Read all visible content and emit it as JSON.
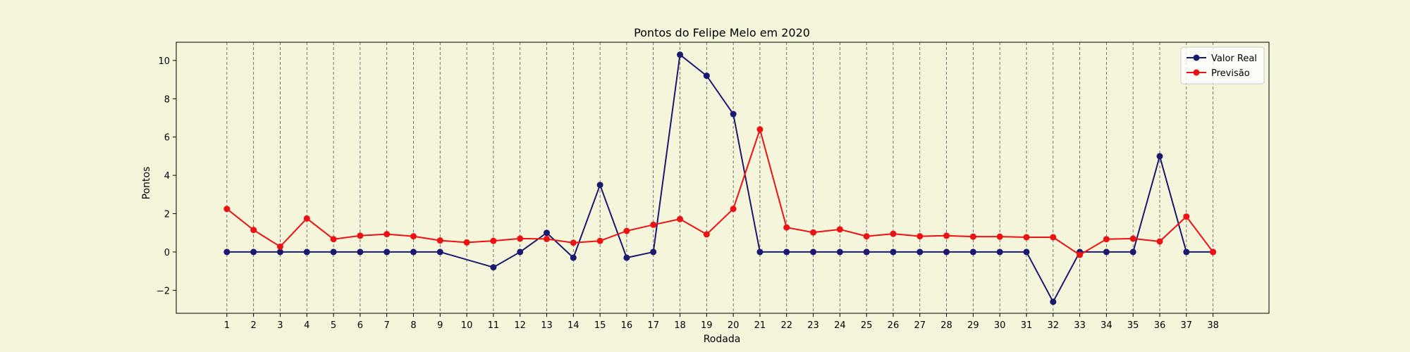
{
  "chart_data": {
    "type": "line",
    "title": "Pontos do Felipe Melo em 2020",
    "xlabel": "Rodada",
    "ylabel": "Pontos",
    "xlim": [
      -0.9,
      40.1
    ],
    "ylim": [
      -3.2,
      10.95
    ],
    "yticks": [
      -2,
      0,
      2,
      4,
      6,
      8,
      10
    ],
    "x": [
      1,
      2,
      3,
      4,
      5,
      6,
      7,
      8,
      9,
      10,
      11,
      12,
      13,
      14,
      15,
      16,
      17,
      18,
      19,
      20,
      21,
      22,
      23,
      24,
      25,
      26,
      27,
      28,
      29,
      30,
      31,
      32,
      33,
      34,
      35,
      36,
      37,
      38
    ],
    "vertical_grid": true,
    "legend_position": "upper right",
    "series": [
      {
        "name": "Valor Real",
        "color": "#191970",
        "points": [
          [
            1,
            0
          ],
          [
            2,
            0
          ],
          [
            3,
            0
          ],
          [
            4,
            0
          ],
          [
            5,
            0
          ],
          [
            6,
            0
          ],
          [
            7,
            0
          ],
          [
            8,
            0
          ],
          [
            9,
            0
          ],
          [
            11,
            -0.8
          ],
          [
            12,
            0
          ],
          [
            13,
            1.0
          ],
          [
            14,
            -0.3
          ],
          [
            15,
            3.5
          ],
          [
            16,
            -0.3
          ],
          [
            17,
            0
          ],
          [
            18,
            10.3
          ],
          [
            19,
            9.2
          ],
          [
            20,
            7.2
          ],
          [
            21,
            0
          ],
          [
            22,
            0
          ],
          [
            23,
            0
          ],
          [
            24,
            0
          ],
          [
            25,
            0
          ],
          [
            26,
            0
          ],
          [
            27,
            0
          ],
          [
            28,
            0
          ],
          [
            29,
            0
          ],
          [
            30,
            0
          ],
          [
            31,
            0
          ],
          [
            32,
            -2.6
          ],
          [
            33,
            0
          ],
          [
            34,
            0
          ],
          [
            35,
            0
          ],
          [
            36,
            5.0
          ],
          [
            37,
            0
          ],
          [
            38,
            0
          ]
        ]
      },
      {
        "name": "Previsão",
        "color": "#ee1111",
        "points": [
          [
            1,
            2.25
          ],
          [
            2,
            1.15
          ],
          [
            3,
            0.28
          ],
          [
            4,
            1.75
          ],
          [
            5,
            0.67
          ],
          [
            6,
            0.85
          ],
          [
            7,
            0.93
          ],
          [
            8,
            0.82
          ],
          [
            9,
            0.6
          ],
          [
            10,
            0.5
          ],
          [
            11,
            0.58
          ],
          [
            12,
            0.7
          ],
          [
            13,
            0.68
          ],
          [
            14,
            0.48
          ],
          [
            15,
            0.58
          ],
          [
            16,
            1.1
          ],
          [
            17,
            1.42
          ],
          [
            18,
            1.72
          ],
          [
            19,
            0.92
          ],
          [
            20,
            2.25
          ],
          [
            21,
            6.4
          ],
          [
            22,
            1.28
          ],
          [
            23,
            1.02
          ],
          [
            24,
            1.18
          ],
          [
            25,
            0.82
          ],
          [
            26,
            0.95
          ],
          [
            27,
            0.82
          ],
          [
            28,
            0.85
          ],
          [
            29,
            0.8
          ],
          [
            30,
            0.8
          ],
          [
            31,
            0.77
          ],
          [
            32,
            0.77
          ],
          [
            33,
            -0.15
          ],
          [
            34,
            0.67
          ],
          [
            35,
            0.7
          ],
          [
            36,
            0.55
          ],
          [
            37,
            1.85
          ],
          [
            38,
            0
          ]
        ]
      }
    ]
  }
}
